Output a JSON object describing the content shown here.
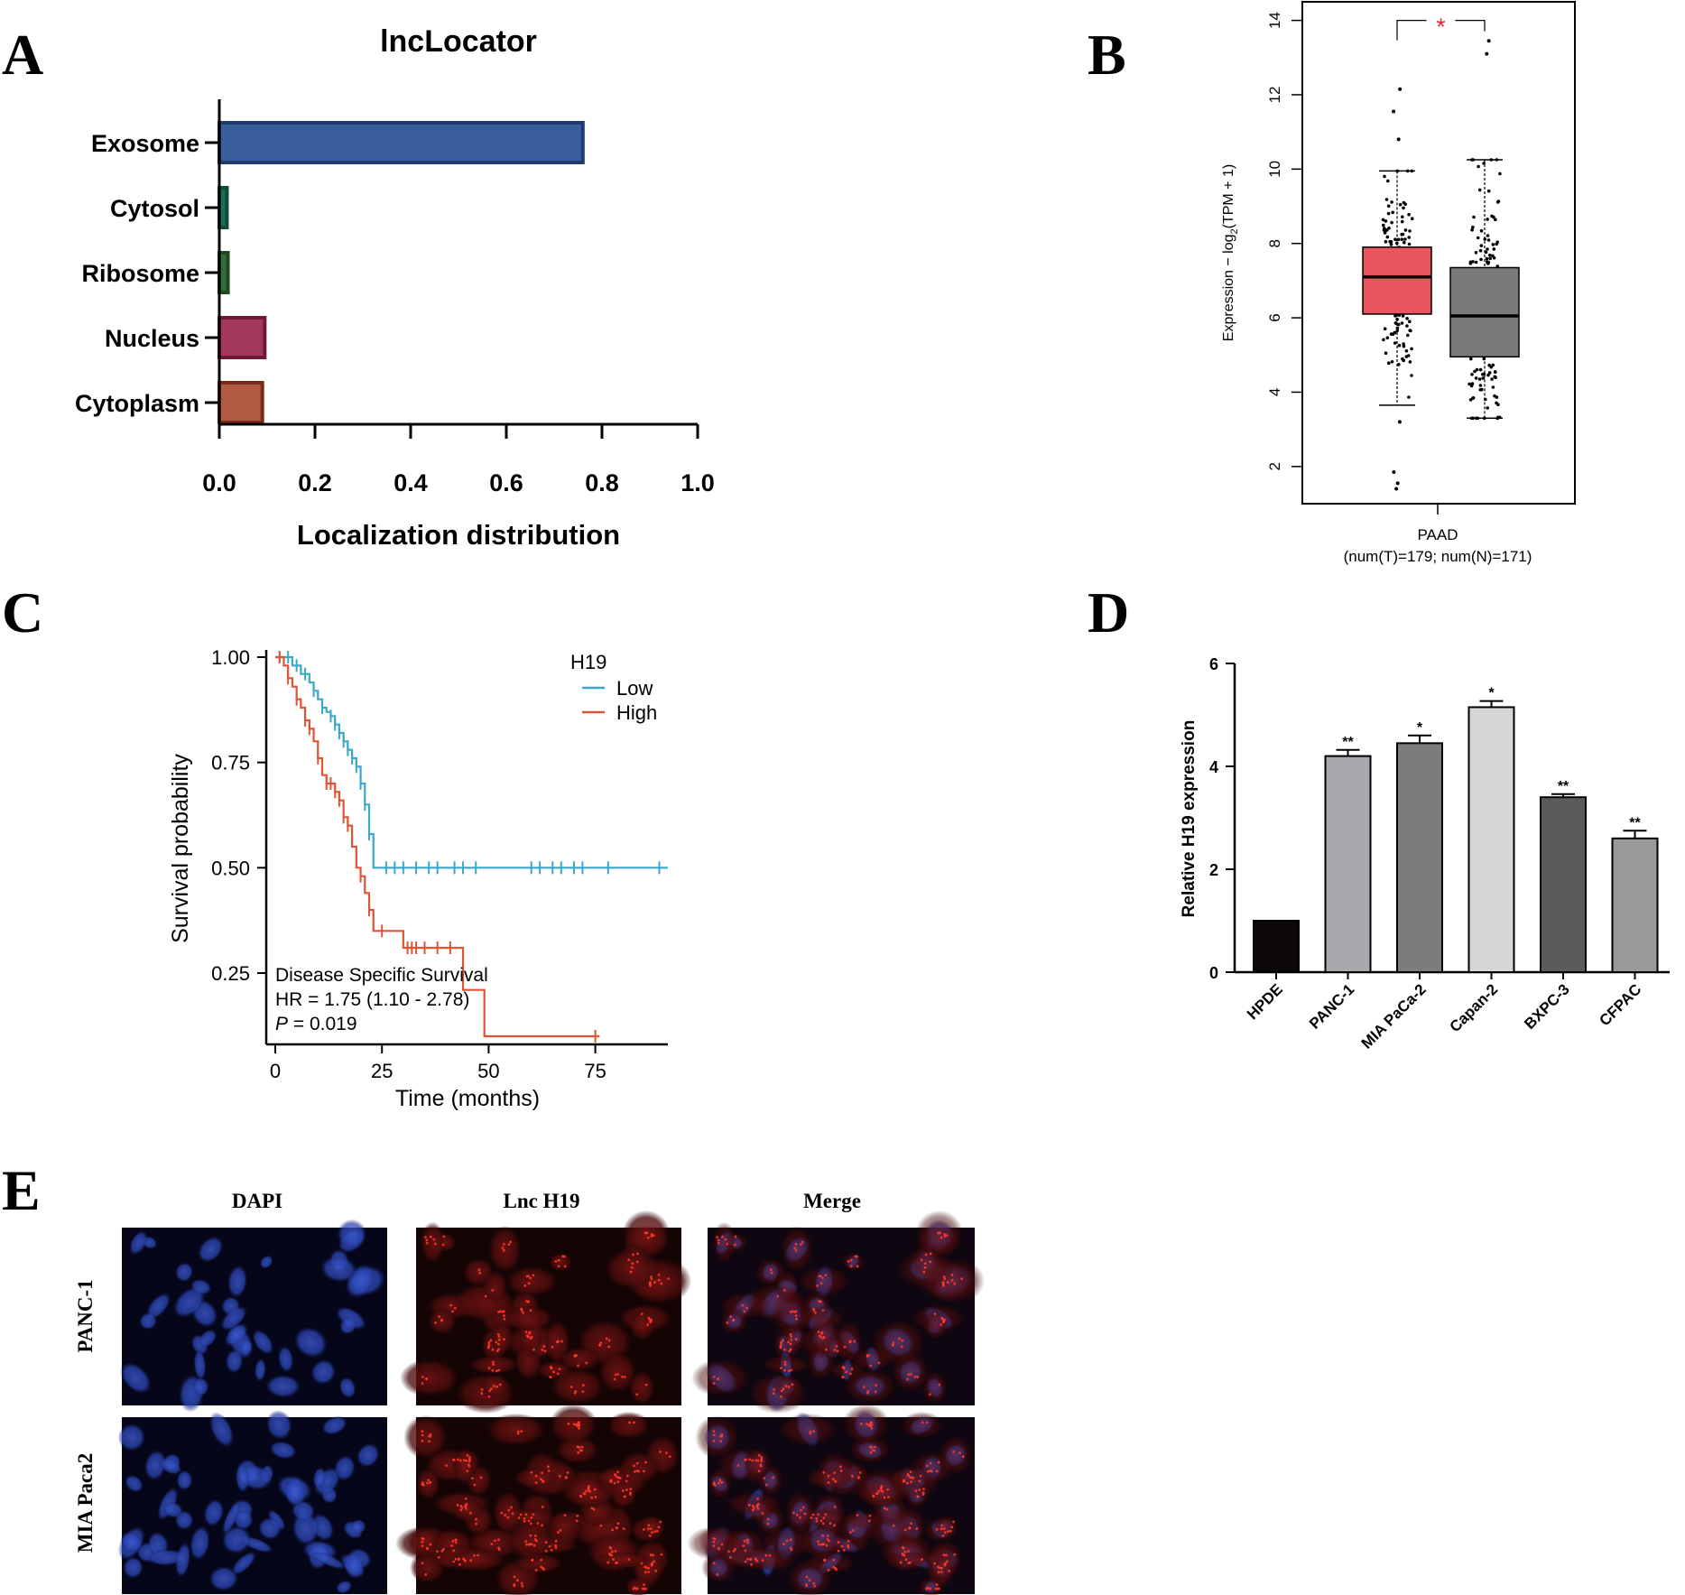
{
  "panels": {
    "A": {
      "letter": "A",
      "chart_data": {
        "type": "bar",
        "orientation": "horizontal",
        "title": "lncLocator",
        "xlabel": "Localization distribution",
        "ylabel": "",
        "categories": [
          "Exosome",
          "Cytosol",
          "Ribosome",
          "Nucleus",
          "Cytoplasm"
        ],
        "values": [
          0.76,
          0.016,
          0.018,
          0.095,
          0.09
        ],
        "xlim": [
          0,
          1.0
        ],
        "xticks": [
          "0.0",
          "0.2",
          "0.4",
          "0.6",
          "0.8",
          "1.0"
        ],
        "grid": false,
        "colors": [
          {
            "fill": "#3a5e9c",
            "edge": "#1f3a6e"
          },
          {
            "fill": "#1c6b56",
            "edge": "#0f4a3a"
          },
          {
            "fill": "#356b3a",
            "edge": "#1e4a22"
          },
          {
            "fill": "#a33a5e",
            "edge": "#6e1a36"
          },
          {
            "fill": "#b25a42",
            "edge": "#7a2a1a"
          }
        ]
      }
    },
    "B": {
      "letter": "B",
      "chart_data": {
        "type": "boxplot",
        "ylabel_main": "Expression − log",
        "ylabel_sub": "2",
        "ylabel_tail": "(TPM + 1)",
        "xlabel": "PAAD",
        "xlabel_sub": "(num(T)=179; num(N)=171)",
        "significance": "*",
        "ylim": [
          1,
          14.5
        ],
        "yticks": [
          2,
          4,
          6,
          8,
          10,
          12,
          14
        ],
        "series": [
          {
            "name": "",
            "color": "#e8555c",
            "q1": 6.1,
            "median": 7.1,
            "q3": 7.9,
            "whisker_low": 3.65,
            "whisker_high": 9.95,
            "outliers": [
              12.15,
              11.55,
              10.8,
              3.2,
              1.85,
              1.55,
              1.4
            ]
          },
          {
            "name": "",
            "color": "#7a7a7a",
            "q1": 4.95,
            "median": 6.05,
            "q3": 7.35,
            "whisker_low": 3.3,
            "whisker_high": 10.25,
            "outliers": [
              13.45,
              13.1
            ]
          }
        ]
      }
    },
    "C": {
      "letter": "C",
      "chart_data": {
        "type": "line",
        "subtype": "kaplan-meier",
        "xlabel": "Time (months)",
        "ylabel": "Survival probability",
        "xlim": [
          0,
          92
        ],
        "ylim": [
          0.1,
          1.0
        ],
        "xticks": [
          0,
          25,
          50,
          75
        ],
        "yticks": [
          "1.00",
          "0.75",
          "0.50",
          "0.25"
        ],
        "legend_title": "H19",
        "legend_position": "top-right",
        "annotation_lines": [
          "Disease Specific Survival",
          "HR = 1.75 (1.10 -  2.78)"
        ],
        "annotation_p_label": "P",
        "annotation_p_value": " = 0.019",
        "series": [
          {
            "name": "Low",
            "color": "#3aa8c8",
            "steps": [
              [
                0,
                1.0
              ],
              [
                2,
                1.0
              ],
              [
                4,
                0.98
              ],
              [
                6,
                0.96
              ],
              [
                8,
                0.94
              ],
              [
                9,
                0.92
              ],
              [
                10,
                0.9
              ],
              [
                11,
                0.88
              ],
              [
                12,
                0.87
              ],
              [
                13,
                0.86
              ],
              [
                14,
                0.84
              ],
              [
                15,
                0.82
              ],
              [
                16,
                0.8
              ],
              [
                17,
                0.78
              ],
              [
                18,
                0.76
              ],
              [
                19,
                0.74
              ],
              [
                20,
                0.7
              ],
              [
                21,
                0.65
              ],
              [
                22,
                0.58
              ],
              [
                23,
                0.5
              ],
              [
                92,
                0.5
              ]
            ],
            "censor_x": [
              1,
              3,
              5,
              7,
              9,
              11,
              13,
              14,
              15,
              16,
              17,
              18,
              19,
              20,
              21,
              22,
              26,
              28,
              30,
              33,
              36,
              38,
              42,
              44,
              47,
              60,
              62,
              65,
              67,
              70,
              72,
              78,
              90
            ]
          },
          {
            "name": "High",
            "color": "#e05436",
            "steps": [
              [
                0,
                1.0
              ],
              [
                2,
                0.98
              ],
              [
                3,
                0.95
              ],
              [
                4,
                0.93
              ],
              [
                5,
                0.9
              ],
              [
                6,
                0.88
              ],
              [
                7,
                0.85
              ],
              [
                8,
                0.83
              ],
              [
                9,
                0.8
              ],
              [
                10,
                0.76
              ],
              [
                11,
                0.72
              ],
              [
                12,
                0.7
              ],
              [
                14,
                0.68
              ],
              [
                15,
                0.66
              ],
              [
                16,
                0.62
              ],
              [
                17,
                0.6
              ],
              [
                18,
                0.55
              ],
              [
                19,
                0.5
              ],
              [
                20,
                0.48
              ],
              [
                21,
                0.44
              ],
              [
                22,
                0.4
              ],
              [
                23,
                0.35
              ],
              [
                30,
                0.31
              ],
              [
                44,
                0.21
              ],
              [
                49,
                0.1
              ],
              [
                76,
                0.1
              ]
            ],
            "censor_x": [
              1,
              3,
              5,
              7,
              8,
              10,
              12,
              13,
              14,
              15,
              16,
              17,
              20,
              22,
              25,
              31,
              32,
              33,
              35,
              38,
              41,
              75
            ]
          }
        ]
      }
    },
    "D": {
      "letter": "D",
      "chart_data": {
        "type": "bar",
        "ylabel": "Relative H19 expression",
        "xlabel": "",
        "ylim": [
          0,
          6
        ],
        "yticks": [
          0,
          2,
          4,
          6
        ],
        "categories": [
          "HPDE",
          "PANC-1",
          "MIA PaCa-2",
          "Capan-2",
          "BXPC-3",
          "CFPAC"
        ],
        "values": [
          1.0,
          4.2,
          4.45,
          5.15,
          3.4,
          2.6
        ],
        "errors": [
          0,
          0.12,
          0.15,
          0.12,
          0.06,
          0.15
        ],
        "significance": [
          "",
          "**",
          "*",
          "*",
          "**",
          "**"
        ],
        "colors": [
          "#0d0808",
          "#a9a9ad",
          "#7c7c7c",
          "#d6d6d6",
          "#5b5b5b",
          "#999999"
        ]
      }
    },
    "E": {
      "letter": "E",
      "column_labels": [
        "DAPI",
        "Lnc H19",
        "Merge"
      ],
      "row_labels": [
        "PANC-1",
        "MIA Paca2"
      ]
    }
  }
}
